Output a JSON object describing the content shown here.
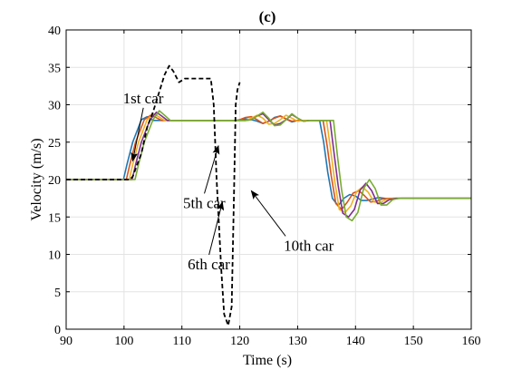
{
  "chart_data": {
    "type": "line",
    "title": "(c)",
    "xlabel": "Time (s)",
    "ylabel": "Velocity (m/s)",
    "xlim": [
      90,
      160
    ],
    "ylim": [
      0,
      40
    ],
    "xticks": [
      90,
      100,
      110,
      120,
      130,
      140,
      150,
      160
    ],
    "yticks": [
      0,
      5,
      10,
      15,
      20,
      25,
      30,
      35,
      40
    ],
    "grid": true,
    "series": [
      {
        "key": "leader",
        "color": "#000000",
        "dashed": true,
        "x": [
          90,
          101,
          101.5,
          103,
          104,
          105,
          106,
          107,
          107.8,
          108.5,
          109.5,
          110.5,
          112,
          113,
          114,
          115,
          115.5,
          116,
          116.8,
          117.3,
          118,
          118.6,
          119,
          119.3,
          119.6,
          120
        ],
        "y": [
          20,
          20,
          20.4,
          23.5,
          27,
          29,
          31.5,
          34,
          35.2,
          34.5,
          33,
          33.5,
          33.5,
          33.5,
          33.5,
          33.5,
          30,
          20,
          8,
          2,
          0.5,
          3,
          18,
          30,
          32,
          33
        ]
      },
      {
        "key": "c1",
        "color": "#1f77b4",
        "x": [
          90,
          99.9,
          100.5,
          101.5,
          103,
          104,
          104.5,
          105,
          106,
          107,
          109,
          112,
          115,
          117,
          119,
          119.3,
          120,
          121,
          122,
          123,
          124,
          125,
          125.5,
          126,
          127,
          128,
          129,
          130,
          131,
          132,
          133.8,
          134.5,
          135.2,
          136,
          137,
          138,
          139,
          140,
          141,
          142,
          143,
          144,
          145,
          146,
          148,
          150,
          152,
          155,
          160
        ],
        "y": [
          20,
          20,
          22,
          25,
          28,
          28.4,
          28.2,
          27.9,
          27.9,
          27.9,
          27.9,
          27.9,
          27.9,
          27.9,
          27.9,
          27.9,
          28,
          28.1,
          28,
          27.8,
          27.5,
          27.8,
          28,
          28.3,
          28.5,
          28.1,
          27.7,
          27.9,
          27.9,
          27.9,
          27.9,
          25,
          21,
          17.5,
          16.5,
          17.5,
          18,
          17.8,
          17.2,
          17.2,
          17.4,
          17.6,
          17.5,
          17.4,
          17.5,
          17.5,
          17.5,
          17.5,
          17.5
        ]
      },
      {
        "key": "c2",
        "color": "#d95319",
        "x": [
          90,
          100.4,
          101,
          102,
          103.5,
          104.6,
          105.5,
          106.5,
          107.5,
          108.5,
          109.5,
          110.5,
          112,
          114,
          116,
          118,
          119,
          119.5,
          120,
          121,
          122,
          123,
          124,
          125,
          126,
          127,
          128,
          129,
          130,
          131,
          132,
          134.4,
          135.1,
          135.8,
          136.6,
          137.6,
          138.6,
          139.6,
          140.6,
          141.6,
          142.6,
          143.6,
          144.6,
          146,
          148,
          150,
          155,
          160
        ],
        "y": [
          20,
          20,
          22,
          25,
          28,
          28.6,
          28.3,
          27.9,
          27.9,
          27.9,
          27.9,
          27.9,
          27.9,
          27.9,
          27.9,
          27.9,
          27.9,
          27.9,
          28,
          28.3,
          28.4,
          28,
          27.5,
          27.8,
          28.2,
          28.5,
          28.1,
          27.8,
          27.9,
          27.9,
          27.9,
          27.9,
          24.5,
          20.5,
          16.8,
          16,
          17,
          18.2,
          18.5,
          17.8,
          17,
          17.1,
          17.4,
          17.5,
          17.5,
          17.5,
          17.5,
          17.5
        ]
      },
      {
        "key": "c3",
        "color": "#edb120",
        "x": [
          90,
          100.9,
          101.5,
          102.5,
          104,
          105.1,
          106,
          107,
          108,
          109,
          110,
          111,
          113,
          115,
          117,
          119,
          120,
          121,
          122,
          123,
          124,
          125,
          126,
          127,
          128,
          129,
          130,
          131,
          132,
          133,
          135,
          135.7,
          136.4,
          137.2,
          138.2,
          139.2,
          140.2,
          141.2,
          142.2,
          143.2,
          144.2,
          145.2,
          146.5,
          148,
          150,
          155,
          160
        ],
        "y": [
          20,
          20,
          22,
          25,
          28,
          28.8,
          28.4,
          27.9,
          27.9,
          27.9,
          27.9,
          27.9,
          27.9,
          27.9,
          27.9,
          27.9,
          27.9,
          27.9,
          28.2,
          28.6,
          28.2,
          27.4,
          27.5,
          28,
          28.6,
          28.2,
          27.8,
          27.9,
          27.9,
          27.9,
          27.9,
          24,
          19.8,
          16,
          15.6,
          16.5,
          18.4,
          19,
          18.3,
          17,
          16.9,
          17.3,
          17.5,
          17.5,
          17.5,
          17.5,
          17.5
        ]
      },
      {
        "key": "c4",
        "color": "#7e2f8e",
        "x": [
          90,
          101.4,
          102,
          103,
          104.5,
          105.6,
          106.5,
          107.5,
          108.5,
          109.5,
          110.5,
          112,
          114,
          116,
          118,
          120,
          121,
          122,
          123,
          124,
          125,
          126,
          127,
          128,
          129,
          130,
          131,
          132,
          133,
          133.5,
          135.6,
          136.3,
          137,
          137.8,
          138.8,
          139.8,
          140.8,
          141.8,
          142.8,
          143.8,
          144.8,
          145.8,
          147,
          149,
          151,
          155,
          160
        ],
        "y": [
          20,
          20,
          22,
          25,
          28,
          29,
          28.5,
          27.9,
          27.9,
          27.9,
          27.9,
          27.9,
          27.9,
          27.9,
          27.9,
          27.9,
          27.9,
          28,
          28.5,
          28.8,
          28,
          27.3,
          27.5,
          28,
          28.7,
          28.2,
          27.8,
          27.9,
          27.9,
          27.9,
          27.9,
          23.5,
          19.2,
          15.5,
          15,
          16,
          18.6,
          19.5,
          18.5,
          16.8,
          16.8,
          17.3,
          17.5,
          17.5,
          17.5,
          17.5,
          17.5
        ]
      },
      {
        "key": "c5",
        "color": "#77ac30",
        "x": [
          90,
          101.9,
          102.5,
          103.5,
          105,
          106.1,
          107,
          108,
          109,
          110,
          111,
          113,
          115,
          117,
          119,
          121,
          122,
          123,
          124,
          125,
          126,
          127,
          128,
          129,
          130,
          131,
          132,
          133,
          134,
          136.2,
          136.9,
          137.6,
          138.4,
          139.4,
          140.4,
          141.4,
          142.4,
          143.4,
          144.4,
          145.4,
          146.4,
          147.5,
          149,
          151,
          155,
          160
        ],
        "y": [
          20,
          20,
          22,
          25,
          28,
          29.2,
          28.6,
          27.9,
          27.9,
          27.9,
          27.9,
          27.9,
          27.9,
          27.9,
          27.9,
          27.9,
          28,
          28.5,
          29,
          28.2,
          27.2,
          27.3,
          28,
          28.8,
          28.2,
          27.8,
          27.9,
          27.9,
          27.9,
          27.9,
          23,
          18.6,
          15,
          14.5,
          15.6,
          18.8,
          20,
          18.8,
          16.6,
          16.6,
          17.3,
          17.5,
          17.5,
          17.5,
          17.5,
          17.5
        ]
      }
    ],
    "annotations": [
      {
        "text": "1st car",
        "tx": 99.8,
        "ty": 30.2,
        "ax": 101.5,
        "ay": 22.5
      },
      {
        "text": "5th car",
        "tx": 110.2,
        "ty": 16.2,
        "ax": 116.3,
        "ay": 24.5
      },
      {
        "text": "6th car",
        "tx": 111,
        "ty": 8,
        "ax": 117,
        "ay": 17
      },
      {
        "text": "10th car",
        "tx": 127.6,
        "ty": 10.5,
        "ax": 122,
        "ay": 18.5
      }
    ]
  }
}
